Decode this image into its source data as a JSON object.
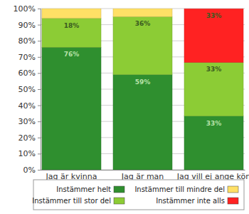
{
  "chart_data": {
    "type": "bar",
    "stacked": true,
    "grid": true,
    "legend": "bottom",
    "data_labels": true,
    "categories": [
      "Jag är kvinna",
      "Jag är man",
      "Jag vill ej ange kön"
    ],
    "series": [
      {
        "name": "Instämmer helt",
        "color": "#2f8f2f",
        "values": [
          76,
          59,
          33.3
        ],
        "value_labels": [
          "76%",
          "59%",
          "33%"
        ]
      },
      {
        "name": "Instämmer till stor del",
        "color": "#8ccc35",
        "values": [
          18,
          36,
          33.3
        ],
        "value_labels": [
          "18%",
          "36%",
          "33%"
        ]
      },
      {
        "name": "Instämmer till mindre del",
        "color": "#ffe066",
        "values": [
          6,
          5,
          0
        ],
        "value_labels": [
          null,
          null,
          null
        ]
      },
      {
        "name": "Instämmer inte alls",
        "color": "#ff2222",
        "values": [
          0,
          0,
          33.3
        ],
        "value_labels": [
          null,
          null,
          "33%"
        ]
      }
    ],
    "ylim": [
      0,
      100
    ],
    "yticks": [
      {
        "value": 0,
        "label": "0%"
      },
      {
        "value": 10,
        "label": "10%"
      },
      {
        "value": 20,
        "label": "20%"
      },
      {
        "value": 30,
        "label": "30%"
      },
      {
        "value": 40,
        "label": "40%"
      },
      {
        "value": 50,
        "label": "50%"
      },
      {
        "value": 60,
        "label": "60%"
      },
      {
        "value": 70,
        "label": "70%"
      },
      {
        "value": 80,
        "label": "80%"
      },
      {
        "value": 90,
        "label": "90%"
      },
      {
        "value": 100,
        "label": "100%"
      }
    ]
  }
}
